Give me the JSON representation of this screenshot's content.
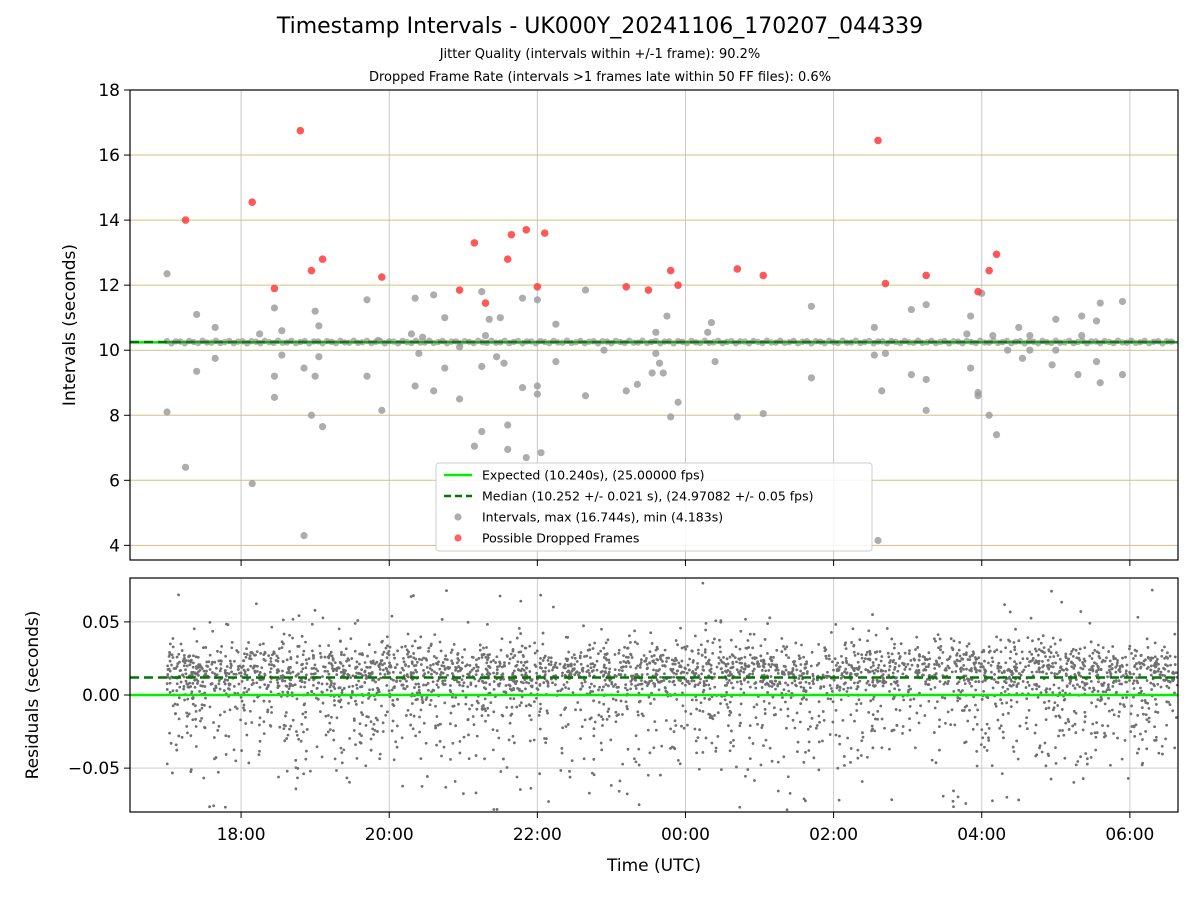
{
  "title": "Timestamp Intervals - UK000Y_20241106_170207_044339",
  "subtitle_1": "Jitter Quality (intervals within +/-1 frame): 90.2%",
  "subtitle_2": "Dropped Frame Rate (intervals >1 frames late within 50 FF files): 0.6%",
  "colors": {
    "expected": "#00ee00",
    "median": "#007700",
    "intervals": "#999999",
    "dropped": "#ff3b3b",
    "grid_vertical": "#c8c8c8",
    "grid_horizontal": "#d4c080",
    "residual_points": "#707070",
    "residual_grid": "#cccccc",
    "axes": "#000000"
  },
  "chart_data": [
    {
      "type": "scatter",
      "ylabel": "Intervals (seconds)",
      "xlabel": "",
      "x_units": "hours since 16:00 UTC (time of day)",
      "xlim": [
        16.5,
        30.65
      ],
      "ylim": [
        3.55,
        18.0
      ],
      "yticks": [
        4,
        6,
        8,
        10,
        12,
        14,
        16,
        18
      ],
      "ytick_labels": [
        "4",
        "6",
        "8",
        "10",
        "12",
        "14",
        "16",
        "18"
      ],
      "xticks": [
        18,
        20,
        22,
        24,
        26,
        28,
        30
      ],
      "grid": true,
      "legend_position": "lower center",
      "legend": [
        {
          "label": "Expected (10.240s), (25.00000 fps)",
          "kind": "line",
          "style": "solid",
          "color_key": "expected"
        },
        {
          "label": "Median (10.252 +/- 0.021 s), (24.97082 +/- 0.05 fps)",
          "kind": "line",
          "style": "dashed",
          "color_key": "median"
        },
        {
          "label": "Intervals, max (16.744s), min (4.183s)",
          "kind": "point",
          "color_key": "intervals"
        },
        {
          "label": "Possible Dropped Frames",
          "kind": "point",
          "color_key": "dropped"
        }
      ],
      "expected_y": 10.24,
      "median_y": 10.252,
      "series": [
        {
          "name": "Intervals, max (16.744s), min (4.183s)",
          "points": [
            [
              17.0,
              12.35
            ],
            [
              17.0,
              8.1
            ],
            [
              17.25,
              6.4
            ],
            [
              17.4,
              9.35
            ],
            [
              17.4,
              11.1
            ],
            [
              17.65,
              10.7
            ],
            [
              17.65,
              9.75
            ],
            [
              18.15,
              5.9
            ],
            [
              18.25,
              10.5
            ],
            [
              18.45,
              11.3
            ],
            [
              18.45,
              9.2
            ],
            [
              18.45,
              8.55
            ],
            [
              18.55,
              9.85
            ],
            [
              18.55,
              10.6
            ],
            [
              18.85,
              4.3
            ],
            [
              18.85,
              9.45
            ],
            [
              18.95,
              8.0
            ],
            [
              19.0,
              11.2
            ],
            [
              19.0,
              9.2
            ],
            [
              19.05,
              10.75
            ],
            [
              19.05,
              9.8
            ],
            [
              19.1,
              7.65
            ],
            [
              19.7,
              11.55
            ],
            [
              19.7,
              9.2
            ],
            [
              19.85,
              10.3
            ],
            [
              19.9,
              8.15
            ],
            [
              20.3,
              10.5
            ],
            [
              20.35,
              8.9
            ],
            [
              20.35,
              11.6
            ],
            [
              20.4,
              9.9
            ],
            [
              20.45,
              10.4
            ],
            [
              20.6,
              11.7
            ],
            [
              20.6,
              8.75
            ],
            [
              20.75,
              9.45
            ],
            [
              20.75,
              11.0
            ],
            [
              20.95,
              8.5
            ],
            [
              20.95,
              10.1
            ],
            [
              21.15,
              7.05
            ],
            [
              21.25,
              7.5
            ],
            [
              21.25,
              9.5
            ],
            [
              21.25,
              11.8
            ],
            [
              21.3,
              10.45
            ],
            [
              21.35,
              10.95
            ],
            [
              21.45,
              9.8
            ],
            [
              21.5,
              11.0
            ],
            [
              21.55,
              9.6
            ],
            [
              21.6,
              7.7
            ],
            [
              21.6,
              6.95
            ],
            [
              21.8,
              8.85
            ],
            [
              21.8,
              11.6
            ],
            [
              21.85,
              6.7
            ],
            [
              22.0,
              8.9
            ],
            [
              22.0,
              8.65
            ],
            [
              22.0,
              11.55
            ],
            [
              22.05,
              6.85
            ],
            [
              22.25,
              9.65
            ],
            [
              22.25,
              10.8
            ],
            [
              22.65,
              8.6
            ],
            [
              22.65,
              11.85
            ],
            [
              22.9,
              10.0
            ],
            [
              23.2,
              8.75
            ],
            [
              23.35,
              8.95
            ],
            [
              23.55,
              9.3
            ],
            [
              23.6,
              10.55
            ],
            [
              23.6,
              9.9
            ],
            [
              23.65,
              9.6
            ],
            [
              23.7,
              9.3
            ],
            [
              23.75,
              11.05
            ],
            [
              23.8,
              7.95
            ],
            [
              23.9,
              8.4
            ],
            [
              24.3,
              10.55
            ],
            [
              24.35,
              10.85
            ],
            [
              24.4,
              9.65
            ],
            [
              24.7,
              7.95
            ],
            [
              25.05,
              8.05
            ],
            [
              25.7,
              9.15
            ],
            [
              25.7,
              11.35
            ],
            [
              26.55,
              9.85
            ],
            [
              26.55,
              10.7
            ],
            [
              26.65,
              8.75
            ],
            [
              26.7,
              9.9
            ],
            [
              27.05,
              11.25
            ],
            [
              27.05,
              9.25
            ],
            [
              27.25,
              11.4
            ],
            [
              27.25,
              9.1
            ],
            [
              27.25,
              8.15
            ],
            [
              27.8,
              10.5
            ],
            [
              27.85,
              11.05
            ],
            [
              27.85,
              9.45
            ],
            [
              27.95,
              8.6
            ],
            [
              27.95,
              8.7
            ],
            [
              28.0,
              11.75
            ],
            [
              28.1,
              8.0
            ],
            [
              28.15,
              10.45
            ],
            [
              28.2,
              7.4
            ],
            [
              28.35,
              10.0
            ],
            [
              28.5,
              10.7
            ],
            [
              28.55,
              9.75
            ],
            [
              28.65,
              10.45
            ],
            [
              28.65,
              10.0
            ],
            [
              28.95,
              9.55
            ],
            [
              29.0,
              10.95
            ],
            [
              29.0,
              10.0
            ],
            [
              29.3,
              9.25
            ],
            [
              29.35,
              11.05
            ],
            [
              29.35,
              10.45
            ],
            [
              29.55,
              10.9
            ],
            [
              29.55,
              9.65
            ],
            [
              29.6,
              11.45
            ],
            [
              29.6,
              9.0
            ],
            [
              29.9,
              11.5
            ],
            [
              29.9,
              9.25
            ],
            [
              26.6,
              4.15
            ]
          ]
        },
        {
          "name": "Possible Dropped Frames",
          "points": [
            [
              17.25,
              14.0
            ],
            [
              18.15,
              14.55
            ],
            [
              18.45,
              11.9
            ],
            [
              18.8,
              16.75
            ],
            [
              18.95,
              12.45
            ],
            [
              19.1,
              12.8
            ],
            [
              19.9,
              12.25
            ],
            [
              20.95,
              11.85
            ],
            [
              21.15,
              13.3
            ],
            [
              21.3,
              11.45
            ],
            [
              21.6,
              12.8
            ],
            [
              21.65,
              13.55
            ],
            [
              21.85,
              13.7
            ],
            [
              22.0,
              11.95
            ],
            [
              22.1,
              13.6
            ],
            [
              23.2,
              11.95
            ],
            [
              23.5,
              11.85
            ],
            [
              23.8,
              12.45
            ],
            [
              23.9,
              12.0
            ],
            [
              24.7,
              12.5
            ],
            [
              25.05,
              12.3
            ],
            [
              26.6,
              16.45
            ],
            [
              26.7,
              12.05
            ],
            [
              27.25,
              12.3
            ],
            [
              27.95,
              11.8
            ],
            [
              28.1,
              12.45
            ],
            [
              28.2,
              12.95
            ]
          ]
        }
      ]
    },
    {
      "type": "scatter",
      "ylabel": "Residuals (seconds)",
      "xlabel": "Time (UTC)",
      "x_units": "hours since 16:00 UTC (time of day)",
      "xlim": [
        16.5,
        30.65
      ],
      "ylim": [
        -0.08,
        0.08
      ],
      "yticks": [
        -0.05,
        0.0,
        0.05
      ],
      "ytick_labels": [
        "−0.05",
        "0.00",
        "0.05"
      ],
      "xticks": [
        18,
        20,
        22,
        24,
        26,
        28,
        30
      ],
      "xtick_labels": [
        "18:00",
        "20:00",
        "22:00",
        "00:00",
        "02:00",
        "04:00",
        "06:00"
      ],
      "grid": true,
      "expected_y": 0.0,
      "median_y": 0.012,
      "residual_points_summary": "dense band of approx. 4000 residual points spanning 17:00 to 06:40 UTC, concentrated near +0.015 s, spread roughly -0.08 to +0.08 s"
    }
  ]
}
